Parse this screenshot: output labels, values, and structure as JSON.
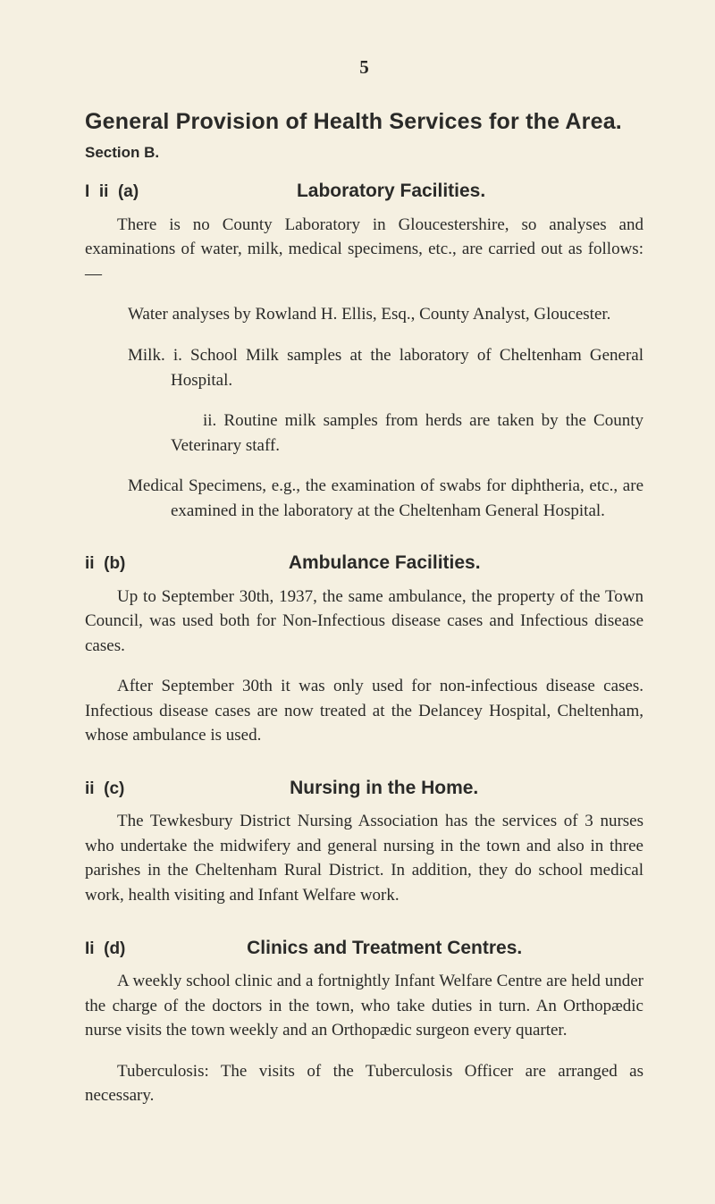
{
  "page_number": "5",
  "main_title": "General Provision of Health Services for the Area.",
  "section_label": "Section B.",
  "sec_a": {
    "marker": "I  ii  (a)",
    "title": "Laboratory Facilities.",
    "p1": "There is no County Laboratory in Gloucestershire, so analyses and examinations of water, milk, medical specimens, etc., are carried out as follows: —",
    "item1": "Water analyses by Rowland H. Ellis, Esq., County Analyst, Gloucester.",
    "item2": "Milk. i. School Milk samples at the laboratory of Cheltenham General Hospital.",
    "item2b": "ii. Routine milk samples from herds are taken by the County Veterinary staff.",
    "item3": "Medical Specimens, e.g., the examination of swabs for diphtheria, etc., are examined in the laboratory at the Cheltenham General Hospital."
  },
  "sec_b": {
    "marker": "ii  (b)",
    "title": "Ambulance Facilities.",
    "p1": "Up to September 30th, 1937, the same ambulance, the property of the Town Council, was used both for Non-Infectious disease cases and Infectious disease cases.",
    "p2": "After September 30th it was only used for non-infectious disease cases. Infectious disease cases are now treated at the Delancey Hospital, Cheltenham, whose ambulance is used."
  },
  "sec_c": {
    "marker": "ii  (c)",
    "title": "Nursing in the Home.",
    "p1": "The Tewkesbury District Nursing Association has the services of 3 nurses who undertake the midwifery and general nursing in the town and also in three parishes in the Chelten­ham Rural District. In addition, they do school medical work, health visiting and Infant Welfare work."
  },
  "sec_d": {
    "marker": "Ii  (d)",
    "title": "Clinics and Treatment Centres.",
    "p1": "A weekly school clinic and a fortnightly Infant Welfare Centre are held under the charge of the doctors in the town, who take duties in turn. An Orthopædic nurse visits the town weekly and an Orthopædic surgeon every quarter.",
    "p2": "Tuberculosis: The visits of the Tuberculosis Officer are arranged as necessary."
  }
}
